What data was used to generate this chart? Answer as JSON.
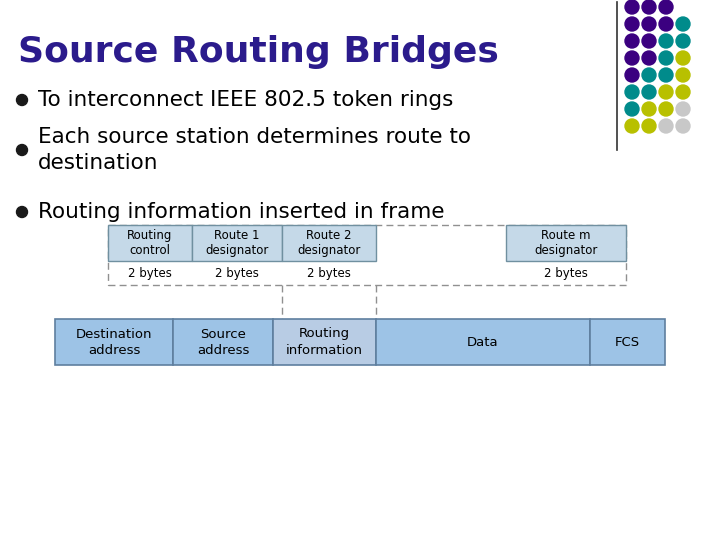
{
  "title": "Source Routing Bridges",
  "title_color": "#2B1B8C",
  "bg_color": "#FFFFFF",
  "bullets": [
    "To interconnect IEEE 802.5 token rings",
    "Each source station determines route to\ndestination",
    "Routing information inserted in frame"
  ],
  "bullet_color": "#000000",
  "bullet_dot_color": "#1A1A1A",
  "upper_table": {
    "cell_color": "#C5D9E8",
    "border_color": "#7090A0"
  },
  "lower_table": {
    "colors": [
      "#9DC3E6",
      "#9DC3E6",
      "#B8CCE4",
      "#9DC3E6",
      "#9DC3E6"
    ]
  },
  "dot_colors": [
    "#3B0080",
    "#008B8B",
    "#B8C000",
    "#C8C8C8"
  ],
  "line_color": "#333333",
  "dashed_color": "#909090"
}
